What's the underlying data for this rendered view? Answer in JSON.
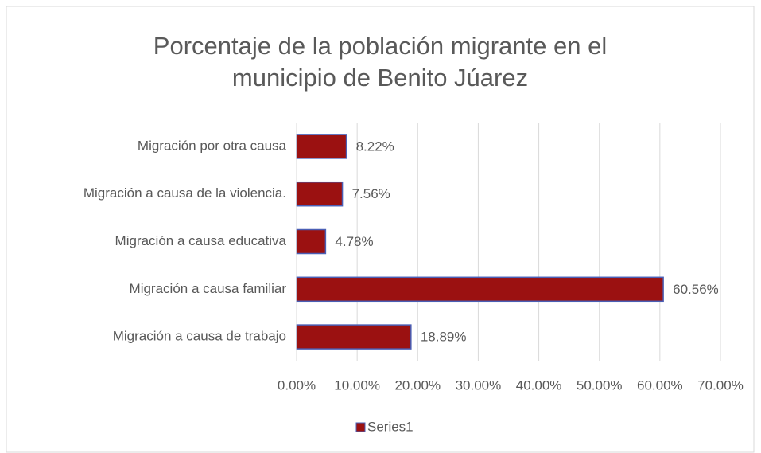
{
  "chart_data": {
    "type": "barh",
    "title": "Porcentaje de la población migrante en el municipio de Benito Júarez",
    "categories": [
      "Migración por otra causa",
      "Migración a causa de la violencia.",
      "Migración a causa educativa",
      "Migración a causa familiar",
      "Migración a causa de trabajo"
    ],
    "series": [
      {
        "name": "Series1",
        "color": "#9b1111",
        "values": [
          8.22,
          7.56,
          4.78,
          60.56,
          18.89
        ],
        "value_labels": [
          "8.22%",
          "7.56%",
          "4.78%",
          "60.56%",
          "18.89%"
        ]
      }
    ],
    "xlim": [
      0,
      70
    ],
    "xticks": [
      {
        "value": 0,
        "label": "0.00%"
      },
      {
        "value": 10,
        "label": "10.00%"
      },
      {
        "value": 20,
        "label": "20.00%"
      },
      {
        "value": 30,
        "label": "30.00%"
      },
      {
        "value": 40,
        "label": "40.00%"
      },
      {
        "value": 50,
        "label": "50.00%"
      },
      {
        "value": 60,
        "label": "60.00%"
      },
      {
        "value": 70,
        "label": "70.00%"
      }
    ],
    "grid": true,
    "legend": "bottom"
  }
}
